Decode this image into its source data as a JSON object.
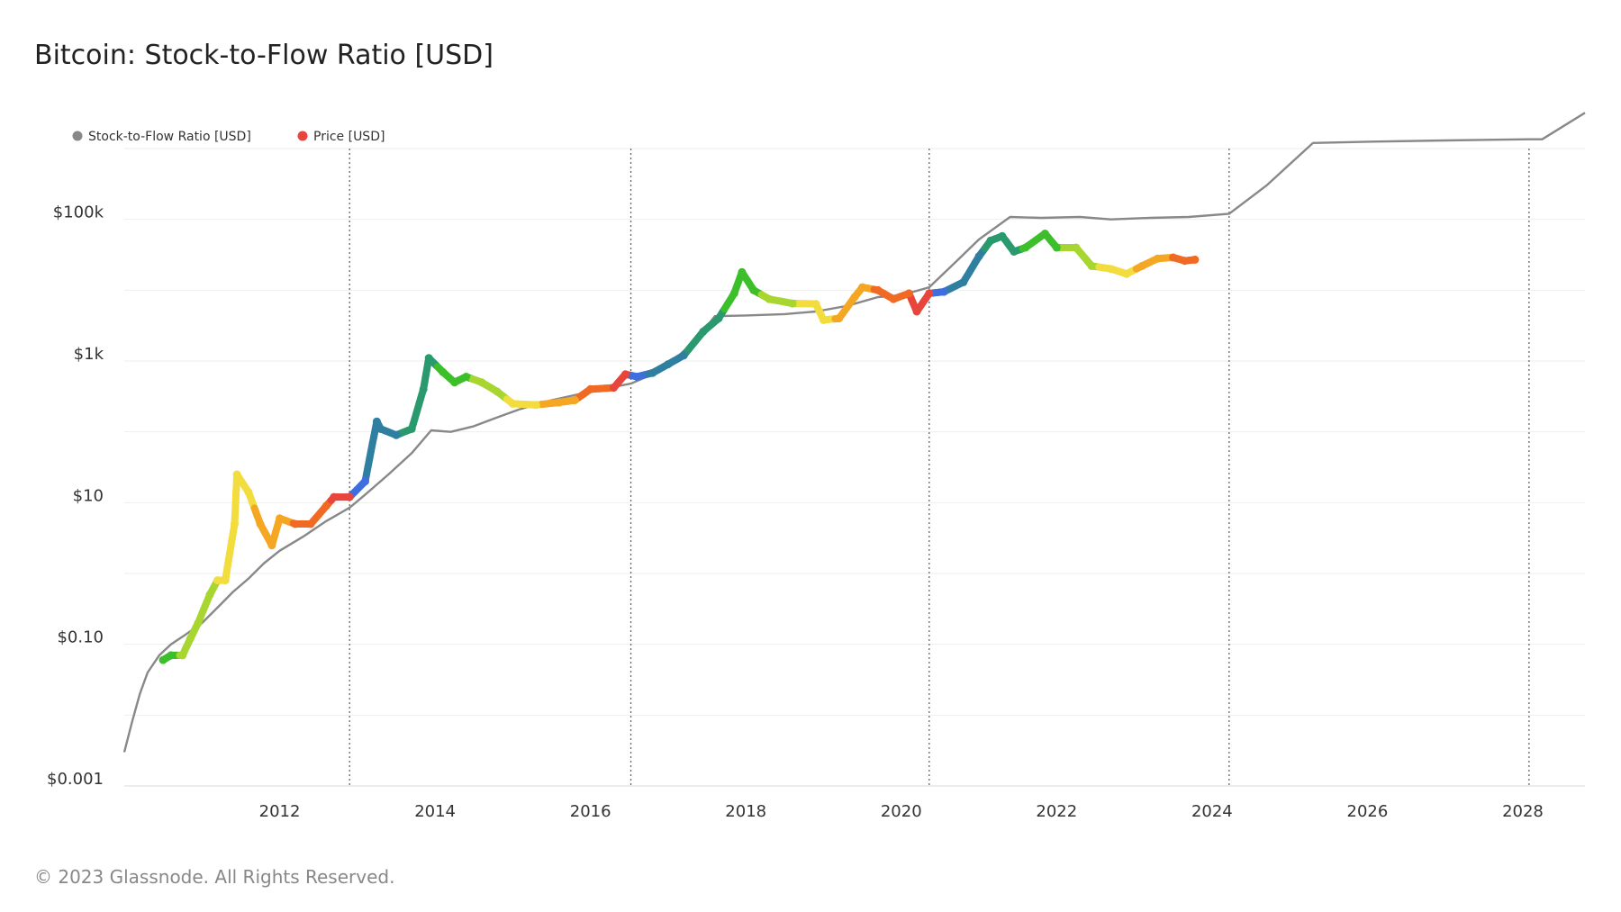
{
  "title": "Bitcoin: Stock-to-Flow Ratio [USD]",
  "footer": "© 2023 Glassnode. All Rights Reserved.",
  "colors": {
    "s2f_line": "#888888",
    "grid": "#eeeeee",
    "halving_line": "#666666",
    "price_palette": [
      "#e8453c",
      "#f06a24",
      "#f5a623",
      "#f2dc3e",
      "#a8d630",
      "#3cbf2a",
      "#2a9a6e",
      "#2f7fa0",
      "#3f6fdc"
    ]
  },
  "chart_data": {
    "type": "line",
    "title": "Bitcoin: Stock-to-Flow Ratio [USD]",
    "y_scale": "log",
    "ylim": [
      0.001,
      1000000
    ],
    "xlim": [
      2010.0,
      2028.8
    ],
    "y_ticks": [
      {
        "value": 0.001,
        "label": "$0.001"
      },
      {
        "value": 0.1,
        "label": "$0.10"
      },
      {
        "value": 10,
        "label": "$10"
      },
      {
        "value": 1000,
        "label": "$1k"
      },
      {
        "value": 100000,
        "label": "$100k"
      }
    ],
    "x_ticks": [
      {
        "value": 2012,
        "label": "2012"
      },
      {
        "value": 2014,
        "label": "2014"
      },
      {
        "value": 2016,
        "label": "2016"
      },
      {
        "value": 2018,
        "label": "2018"
      },
      {
        "value": 2020,
        "label": "2020"
      },
      {
        "value": 2022,
        "label": "2022"
      },
      {
        "value": 2024,
        "label": "2024"
      },
      {
        "value": 2026,
        "label": "2026"
      },
      {
        "value": 2028,
        "label": "2028"
      }
    ],
    "halvings": [
      2012.9,
      2016.52,
      2020.36,
      2024.22,
      2028.08
    ],
    "legend": [
      {
        "name": "Stock-to-Flow Ratio [USD]",
        "color": "#888888"
      },
      {
        "name": "Price [USD]",
        "color": "#e8453c"
      }
    ],
    "series": [
      {
        "name": "Stock-to-Flow Ratio [USD]",
        "color": "#888888",
        "points": [
          [
            2010.0,
            0.003
          ],
          [
            2010.1,
            0.008
          ],
          [
            2010.2,
            0.02
          ],
          [
            2010.3,
            0.04
          ],
          [
            2010.45,
            0.07
          ],
          [
            2010.6,
            0.1
          ],
          [
            2010.8,
            0.14
          ],
          [
            2011.0,
            0.2
          ],
          [
            2011.2,
            0.33
          ],
          [
            2011.4,
            0.55
          ],
          [
            2011.6,
            0.85
          ],
          [
            2011.8,
            1.4
          ],
          [
            2012.0,
            2.1
          ],
          [
            2012.3,
            3.3
          ],
          [
            2012.6,
            5.5
          ],
          [
            2012.9,
            8.5
          ],
          [
            2013.1,
            13
          ],
          [
            2013.4,
            25
          ],
          [
            2013.7,
            50
          ],
          [
            2013.95,
            105
          ],
          [
            2014.2,
            100
          ],
          [
            2014.5,
            120
          ],
          [
            2014.8,
            160
          ],
          [
            2015.1,
            210
          ],
          [
            2015.5,
            280
          ],
          [
            2015.9,
            350
          ],
          [
            2016.3,
            430
          ],
          [
            2016.52,
            480
          ],
          [
            2016.8,
            650
          ],
          [
            2017.1,
            1100
          ],
          [
            2017.4,
            2200
          ],
          [
            2017.6,
            4300
          ],
          [
            2018.0,
            4400
          ],
          [
            2018.5,
            4600
          ],
          [
            2018.9,
            5000
          ],
          [
            2019.3,
            6000
          ],
          [
            2019.7,
            8000
          ],
          [
            2020.0,
            8500
          ],
          [
            2020.36,
            11000
          ],
          [
            2020.7,
            25000
          ],
          [
            2021.0,
            52000
          ],
          [
            2021.4,
            108000
          ],
          [
            2021.8,
            105000
          ],
          [
            2022.3,
            108000
          ],
          [
            2022.7,
            100000
          ],
          [
            2023.2,
            105000
          ],
          [
            2023.7,
            108000
          ],
          [
            2024.22,
            120000
          ],
          [
            2024.7,
            300000
          ],
          [
            2025.3,
            1200000
          ],
          [
            2026.0,
            1250000
          ],
          [
            2027.0,
            1300000
          ],
          [
            2028.08,
            1350000
          ],
          [
            2028.25,
            1350000
          ],
          [
            2028.8,
            3200000
          ]
        ]
      },
      {
        "name": "Price [USD]",
        "points": [
          [
            2010.5,
            0.06
          ],
          [
            2010.6,
            0.07
          ],
          [
            2010.75,
            0.07
          ],
          [
            2010.85,
            0.12
          ],
          [
            2010.95,
            0.2
          ],
          [
            2011.1,
            0.5
          ],
          [
            2011.2,
            0.8
          ],
          [
            2011.3,
            0.8
          ],
          [
            2011.42,
            5
          ],
          [
            2011.45,
            25
          ],
          [
            2011.6,
            14
          ],
          [
            2011.75,
            5
          ],
          [
            2011.9,
            2.5
          ],
          [
            2012.0,
            6
          ],
          [
            2012.2,
            5
          ],
          [
            2012.4,
            5
          ],
          [
            2012.6,
            9
          ],
          [
            2012.7,
            12
          ],
          [
            2012.9,
            12
          ],
          [
            2013.1,
            20
          ],
          [
            2013.25,
            140
          ],
          [
            2013.3,
            110
          ],
          [
            2013.5,
            90
          ],
          [
            2013.7,
            110
          ],
          [
            2013.85,
            400
          ],
          [
            2013.92,
            1100
          ],
          [
            2014.1,
            700
          ],
          [
            2014.25,
            500
          ],
          [
            2014.4,
            600
          ],
          [
            2014.6,
            500
          ],
          [
            2014.8,
            370
          ],
          [
            2015.0,
            250
          ],
          [
            2015.3,
            240
          ],
          [
            2015.6,
            260
          ],
          [
            2015.8,
            280
          ],
          [
            2016.0,
            400
          ],
          [
            2016.3,
            420
          ],
          [
            2016.45,
            650
          ],
          [
            2016.6,
            600
          ],
          [
            2016.8,
            680
          ],
          [
            2017.0,
            900
          ],
          [
            2017.2,
            1200
          ],
          [
            2017.45,
            2600
          ],
          [
            2017.65,
            4000
          ],
          [
            2017.85,
            9000
          ],
          [
            2017.95,
            18000
          ],
          [
            2018.1,
            10000
          ],
          [
            2018.3,
            7500
          ],
          [
            2018.6,
            6500
          ],
          [
            2018.9,
            6400
          ],
          [
            2019.0,
            3800
          ],
          [
            2019.2,
            4000
          ],
          [
            2019.4,
            8000
          ],
          [
            2019.5,
            11000
          ],
          [
            2019.7,
            10000
          ],
          [
            2019.9,
            7500
          ],
          [
            2020.1,
            9000
          ],
          [
            2020.2,
            5000
          ],
          [
            2020.36,
            9000
          ],
          [
            2020.55,
            9500
          ],
          [
            2020.8,
            13000
          ],
          [
            2021.0,
            30000
          ],
          [
            2021.15,
            50000
          ],
          [
            2021.3,
            58000
          ],
          [
            2021.45,
            35000
          ],
          [
            2021.6,
            40000
          ],
          [
            2021.85,
            63000
          ],
          [
            2022.0,
            40000
          ],
          [
            2022.25,
            40000
          ],
          [
            2022.45,
            22000
          ],
          [
            2022.7,
            20000
          ],
          [
            2022.9,
            17000
          ],
          [
            2023.1,
            22000
          ],
          [
            2023.3,
            28000
          ],
          [
            2023.5,
            29000
          ],
          [
            2023.65,
            26000
          ],
          [
            2023.78,
            27000
          ]
        ]
      }
    ]
  }
}
